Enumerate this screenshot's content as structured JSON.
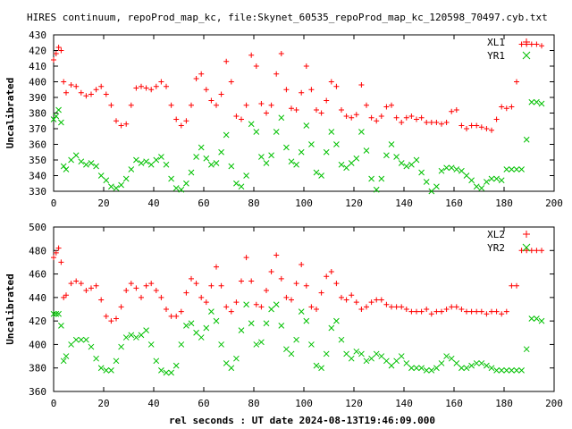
{
  "page": {
    "title": "HIRES continuum, repoProd_map_kc, file:Skynet_60535_repoProd_map_kc_120598_70497.cyb.txt",
    "xlabel": "rel seconds : UT date 2024-08-13T19:46:09.000"
  },
  "colors": {
    "series1": "#ff0000",
    "series2": "#00c000",
    "axes": "#000000"
  },
  "chart_data": [
    {
      "type": "scatter",
      "title": "HIRES continuum, repoProd_map_kc, file:Skynet_60535_repoProd_map_kc_120598_70497.cyb.txt",
      "xlabel": "",
      "ylabel": "Uncalibrated",
      "xlim": [
        0,
        200
      ],
      "ylim": [
        330,
        430
      ],
      "xticks": [
        "0",
        "20",
        "40",
        "60",
        "80",
        "100",
        "120",
        "140",
        "160",
        "180",
        "200"
      ],
      "yticks": [
        "330",
        "340",
        "350",
        "360",
        "370",
        "380",
        "390",
        "400",
        "410",
        "420",
        "430"
      ],
      "grid": false,
      "legend": "top-right",
      "series": [
        {
          "name": "XL1",
          "marker": "plus",
          "x": [
            0,
            1,
            2,
            3,
            4,
            5,
            7,
            9,
            11,
            13,
            15,
            17,
            19,
            21,
            23,
            25,
            27,
            29,
            31,
            33,
            35,
            37,
            39,
            41,
            43,
            45,
            47,
            49,
            51,
            53,
            55,
            57,
            59,
            61,
            63,
            65,
            67,
            69,
            71,
            73,
            75,
            77,
            79,
            81,
            83,
            85,
            87,
            89,
            91,
            93,
            95,
            97,
            99,
            101,
            103,
            105,
            107,
            109,
            111,
            113,
            115,
            117,
            119,
            121,
            123,
            125,
            127,
            129,
            131,
            133,
            135,
            137,
            139,
            141,
            143,
            145,
            147,
            149,
            151,
            153,
            155,
            157,
            159,
            161,
            163,
            165,
            167,
            169,
            171,
            173,
            175,
            177,
            179,
            181,
            183,
            185,
            187,
            189,
            191,
            193,
            195
          ],
          "y": [
            414,
            418,
            422,
            420,
            400,
            393,
            398,
            397,
            393,
            391,
            392,
            395,
            397,
            392,
            385,
            375,
            372,
            373,
            385,
            396,
            397,
            396,
            395,
            397,
            400,
            397,
            385,
            376,
            372,
            375,
            385,
            402,
            405,
            395,
            388,
            385,
            392,
            413,
            400,
            378,
            376,
            385,
            417,
            410,
            386,
            380,
            385,
            405,
            418,
            395,
            383,
            382,
            393,
            410,
            395,
            382,
            380,
            388,
            400,
            397,
            382,
            378,
            377,
            379,
            398,
            385,
            377,
            375,
            378,
            384,
            385,
            377,
            374,
            377,
            378,
            376,
            377,
            374,
            374,
            374,
            373,
            374,
            381,
            382,
            372,
            370,
            372,
            372,
            371,
            370,
            369,
            376,
            384,
            383,
            384,
            400,
            424,
            424,
            424,
            424,
            423
          ]
        },
        {
          "name": "YR1",
          "marker": "cross",
          "x": [
            0,
            1,
            2,
            3,
            4,
            5,
            7,
            9,
            11,
            13,
            15,
            17,
            19,
            21,
            23,
            25,
            27,
            29,
            31,
            33,
            35,
            37,
            39,
            41,
            43,
            45,
            47,
            49,
            51,
            53,
            55,
            57,
            59,
            61,
            63,
            65,
            67,
            69,
            71,
            73,
            75,
            77,
            79,
            81,
            83,
            85,
            87,
            89,
            91,
            93,
            95,
            97,
            99,
            101,
            103,
            105,
            107,
            109,
            111,
            113,
            115,
            117,
            119,
            121,
            123,
            125,
            127,
            129,
            131,
            133,
            135,
            137,
            139,
            141,
            143,
            145,
            147,
            149,
            151,
            153,
            155,
            157,
            159,
            161,
            163,
            165,
            167,
            169,
            171,
            173,
            175,
            177,
            179,
            181,
            183,
            185,
            187,
            189,
            191,
            193,
            195
          ],
          "y": [
            376,
            378,
            382,
            374,
            346,
            344,
            350,
            353,
            349,
            347,
            348,
            346,
            340,
            337,
            333,
            332,
            334,
            338,
            344,
            350,
            348,
            349,
            347,
            350,
            352,
            347,
            338,
            332,
            331,
            335,
            342,
            352,
            358,
            351,
            347,
            348,
            355,
            366,
            346,
            335,
            333,
            340,
            373,
            368,
            352,
            348,
            353,
            368,
            377,
            358,
            349,
            347,
            355,
            372,
            360,
            342,
            340,
            355,
            368,
            360,
            347,
            345,
            348,
            351,
            368,
            356,
            338,
            331,
            338,
            353,
            360,
            352,
            348,
            346,
            347,
            350,
            342,
            336,
            330,
            333,
            343,
            345,
            345,
            344,
            343,
            340,
            337,
            333,
            332,
            336,
            338,
            338,
            337,
            344,
            344,
            344,
            344,
            363,
            387,
            387,
            386
          ]
        }
      ]
    },
    {
      "type": "scatter",
      "title": "",
      "xlabel": "rel seconds : UT date 2024-08-13T19:46:09.000",
      "ylabel": "Uncalibrated",
      "xlim": [
        0,
        200
      ],
      "ylim": [
        360,
        500
      ],
      "xticks": [
        "0",
        "20",
        "40",
        "60",
        "80",
        "100",
        "120",
        "140",
        "160",
        "180",
        "200"
      ],
      "yticks": [
        "360",
        "380",
        "400",
        "420",
        "440",
        "460",
        "480",
        "500"
      ],
      "grid": false,
      "legend": "top-right",
      "series": [
        {
          "name": "XL2",
          "marker": "plus",
          "x": [
            0,
            1,
            2,
            3,
            4,
            5,
            7,
            9,
            11,
            13,
            15,
            17,
            19,
            21,
            23,
            25,
            27,
            29,
            31,
            33,
            35,
            37,
            39,
            41,
            43,
            45,
            47,
            49,
            51,
            53,
            55,
            57,
            59,
            61,
            63,
            65,
            67,
            69,
            71,
            73,
            75,
            77,
            79,
            81,
            83,
            85,
            87,
            89,
            91,
            93,
            95,
            97,
            99,
            101,
            103,
            105,
            107,
            109,
            111,
            113,
            115,
            117,
            119,
            121,
            123,
            125,
            127,
            129,
            131,
            133,
            135,
            137,
            139,
            141,
            143,
            145,
            147,
            149,
            151,
            153,
            155,
            157,
            159,
            161,
            163,
            165,
            167,
            169,
            171,
            173,
            175,
            177,
            179,
            181,
            183,
            185,
            187,
            189,
            191,
            193,
            195
          ],
          "y": [
            474,
            478,
            482,
            470,
            440,
            442,
            452,
            454,
            452,
            446,
            448,
            450,
            438,
            424,
            420,
            422,
            432,
            446,
            452,
            448,
            440,
            450,
            452,
            446,
            440,
            430,
            424,
            424,
            428,
            444,
            456,
            452,
            440,
            436,
            450,
            466,
            450,
            432,
            428,
            436,
            454,
            474,
            454,
            434,
            432,
            446,
            462,
            476,
            456,
            440,
            438,
            452,
            468,
            450,
            432,
            430,
            444,
            458,
            462,
            452,
            440,
            438,
            442,
            436,
            430,
            432,
            436,
            438,
            438,
            434,
            432,
            432,
            432,
            430,
            428,
            428,
            428,
            430,
            426,
            428,
            428,
            430,
            432,
            432,
            430,
            428,
            428,
            428,
            428,
            426,
            428,
            428,
            426,
            428,
            450,
            450,
            480,
            480,
            480,
            480,
            480
          ]
        },
        {
          "name": "YR2",
          "marker": "cross",
          "x": [
            0,
            1,
            2,
            3,
            4,
            5,
            7,
            9,
            11,
            13,
            15,
            17,
            19,
            21,
            23,
            25,
            27,
            29,
            31,
            33,
            35,
            37,
            39,
            41,
            43,
            45,
            47,
            49,
            51,
            53,
            55,
            57,
            59,
            61,
            63,
            65,
            67,
            69,
            71,
            73,
            75,
            77,
            79,
            81,
            83,
            85,
            87,
            89,
            91,
            93,
            95,
            97,
            99,
            101,
            103,
            105,
            107,
            109,
            111,
            113,
            115,
            117,
            119,
            121,
            123,
            125,
            127,
            129,
            131,
            133,
            135,
            137,
            139,
            141,
            143,
            145,
            147,
            149,
            151,
            153,
            155,
            157,
            159,
            161,
            163,
            165,
            167,
            169,
            171,
            173,
            175,
            177,
            179,
            181,
            183,
            185,
            187,
            189,
            191,
            193,
            195
          ],
          "y": [
            426,
            426,
            426,
            416,
            386,
            390,
            400,
            404,
            404,
            404,
            398,
            388,
            380,
            378,
            378,
            386,
            398,
            406,
            408,
            406,
            408,
            412,
            400,
            386,
            378,
            376,
            376,
            382,
            400,
            416,
            418,
            410,
            406,
            414,
            428,
            420,
            400,
            384,
            380,
            388,
            412,
            434,
            418,
            400,
            402,
            418,
            430,
            434,
            416,
            396,
            392,
            404,
            428,
            420,
            400,
            382,
            380,
            392,
            414,
            420,
            404,
            392,
            388,
            394,
            392,
            386,
            388,
            392,
            390,
            386,
            382,
            386,
            390,
            384,
            380,
            380,
            380,
            378,
            378,
            380,
            384,
            390,
            388,
            384,
            380,
            380,
            382,
            384,
            384,
            382,
            380,
            378,
            378,
            378,
            378,
            378,
            378,
            396,
            422,
            422,
            420
          ]
        }
      ]
    }
  ]
}
